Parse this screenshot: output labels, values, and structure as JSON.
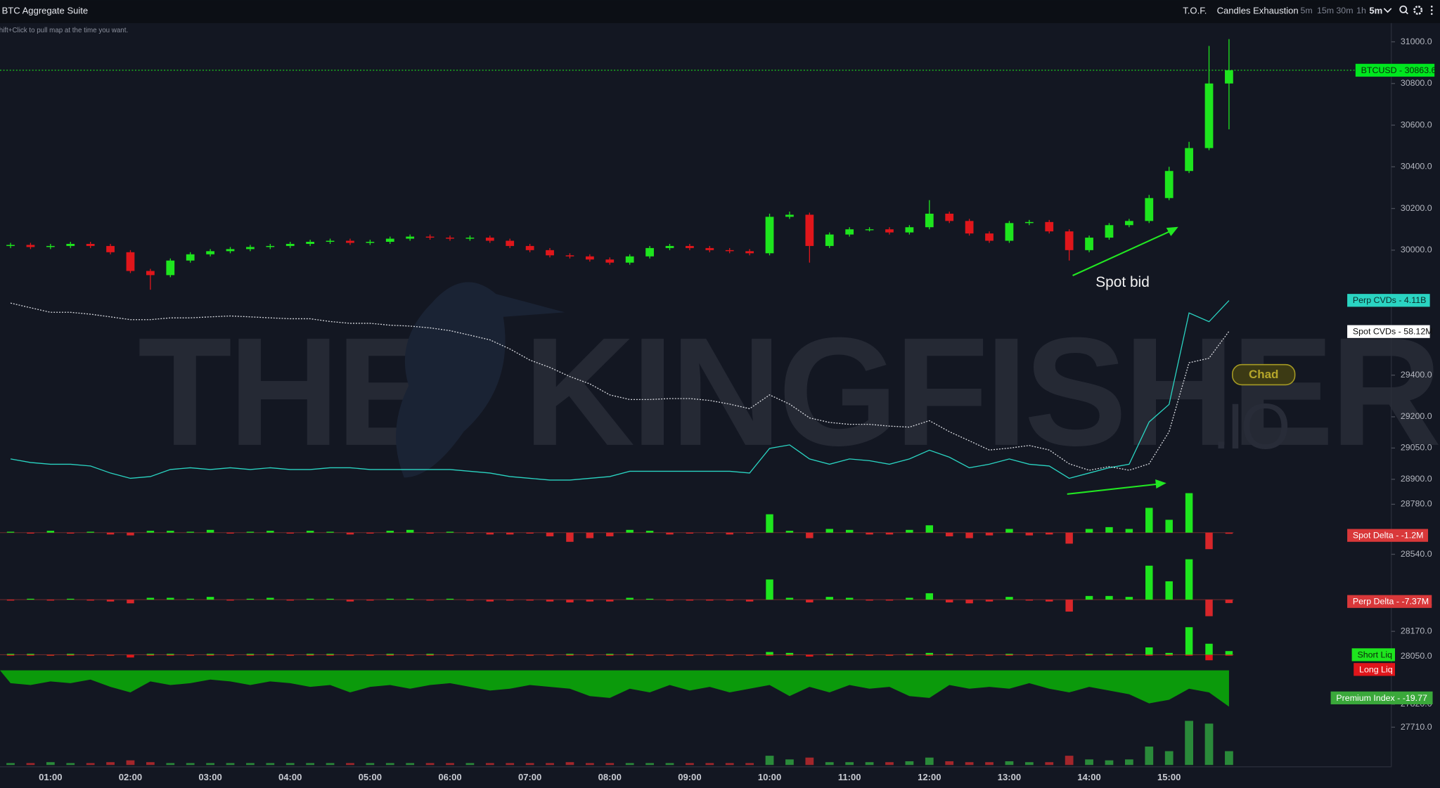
{
  "toolbar": {
    "title": "BTC Aggregate Suite",
    "items": [
      "T.O.F.",
      "Candles Exhaustion"
    ],
    "intervals": [
      "5m",
      "15m",
      "30m",
      "1h"
    ],
    "selected": "5m"
  },
  "hint": "Shift+Click to pull map at the time you want.",
  "watermark": [
    "THE",
    "KINGFISHER",
    ".IO"
  ],
  "annotation": "Spot bid",
  "button": "Chad",
  "chart_data": {
    "type": "candlestick",
    "price_label": "BTCUSD - 30863.6",
    "up_color": "#1ee51e",
    "down_color": "#e0161b",
    "categories": [
      "00:30",
      "00:45",
      "01:00",
      "01:15",
      "01:30",
      "01:45",
      "02:00",
      "02:15",
      "02:30",
      "02:45",
      "03:00",
      "03:15",
      "03:30",
      "03:45",
      "04:00",
      "04:15",
      "04:30",
      "04:45",
      "05:00",
      "05:15",
      "05:30",
      "05:45",
      "06:00",
      "06:15",
      "06:30",
      "06:45",
      "07:00",
      "07:15",
      "07:30",
      "07:45",
      "08:00",
      "08:15",
      "08:30",
      "08:45",
      "09:00",
      "09:15",
      "09:30",
      "09:45",
      "10:00",
      "10:15",
      "10:30",
      "10:45",
      "11:00",
      "11:15",
      "11:30",
      "11:45",
      "12:00",
      "12:15",
      "12:30",
      "12:45",
      "13:00",
      "13:15",
      "13:30",
      "13:45",
      "14:00",
      "14:15",
      "14:30",
      "14:45",
      "15:00",
      "15:15",
      "15:30",
      "15:45"
    ],
    "xticks": [
      "01:00",
      "02:00",
      "03:00",
      "04:00",
      "05:00",
      "06:00",
      "07:00",
      "08:00",
      "09:00",
      "10:00",
      "11:00",
      "12:00",
      "13:00",
      "14:00",
      "15:00"
    ],
    "open": [
      30020,
      30025,
      30015,
      30020,
      30030,
      30020,
      29990,
      29900,
      29880,
      29950,
      29980,
      29995,
      30005,
      30015,
      30020,
      30030,
      30040,
      30045,
      30035,
      30040,
      30055,
      30065,
      30060,
      30055,
      30060,
      30045,
      30020,
      30000,
      29975,
      29970,
      29955,
      29940,
      29970,
      30010,
      30020,
      30010,
      30000,
      29995,
      29985,
      30160,
      30170,
      30020,
      30075,
      30100,
      30100,
      30085,
      30110,
      30175,
      30140,
      30080,
      30045,
      30130,
      30135,
      30090,
      30000,
      30060,
      30120,
      30140,
      30250,
      30380,
      30490,
      30800
    ],
    "high": [
      30035,
      30035,
      30030,
      30040,
      30040,
      30030,
      30000,
      29910,
      29960,
      29990,
      30005,
      30015,
      30025,
      30030,
      30040,
      30050,
      30055,
      30055,
      30050,
      30065,
      30075,
      30075,
      30070,
      30070,
      30070,
      30055,
      30030,
      30010,
      29985,
      29980,
      29965,
      29980,
      30020,
      30030,
      30030,
      30020,
      30010,
      30005,
      30175,
      30185,
      30180,
      30085,
      30110,
      30110,
      30110,
      30120,
      30240,
      30185,
      30150,
      30090,
      30140,
      30145,
      30145,
      30100,
      30070,
      30130,
      30150,
      30265,
      30400,
      30520,
      30980,
      31013
    ],
    "low": [
      30010,
      30005,
      30005,
      30010,
      30010,
      29980,
      29890,
      29810,
      29870,
      29940,
      29970,
      29985,
      29995,
      30005,
      30010,
      30020,
      30030,
      30025,
      30025,
      30030,
      30045,
      30050,
      30045,
      30045,
      30035,
      30010,
      29990,
      29965,
      29960,
      29945,
      29930,
      29930,
      29960,
      30000,
      30000,
      29990,
      29985,
      29975,
      29975,
      30150,
      29940,
      30010,
      30065,
      30090,
      30075,
      30075,
      30100,
      30130,
      30070,
      30035,
      30035,
      30120,
      30080,
      29950,
      29990,
      30050,
      30110,
      30130,
      30240,
      30370,
      30480,
      30580
    ],
    "close": [
      30025,
      30015,
      30020,
      30030,
      30020,
      29990,
      29900,
      29880,
      29950,
      29980,
      29995,
      30005,
      30015,
      30020,
      30030,
      30040,
      30045,
      30035,
      30040,
      30055,
      30065,
      30060,
      30055,
      30060,
      30045,
      30020,
      30000,
      29975,
      29970,
      29955,
      29940,
      29970,
      30010,
      30020,
      30010,
      30000,
      29995,
      29985,
      30160,
      30170,
      30020,
      30075,
      30100,
      30100,
      30085,
      30110,
      30175,
      30140,
      30080,
      30045,
      30130,
      30135,
      30090,
      30000,
      30060,
      30120,
      30140,
      30250,
      30380,
      30490,
      30800,
      30863.6
    ],
    "ylim": [
      27520,
      31090
    ],
    "yticks": [
      {
        "value": 31000,
        "label": "31000.0"
      },
      {
        "value": 30800,
        "label": "30800.0"
      },
      {
        "value": 30600,
        "label": "30600.0"
      },
      {
        "value": 30400,
        "label": "30400.0"
      },
      {
        "value": 30200,
        "label": "30200.0"
      },
      {
        "value": 30000,
        "label": "30000.0"
      },
      {
        "value": 29400,
        "label": "29400.0"
      },
      {
        "value": 29200,
        "label": "29200.0"
      },
      {
        "value": 29050,
        "label": "29050.0"
      },
      {
        "value": 28900,
        "label": "28900.0"
      },
      {
        "value": 28780,
        "label": "28780.0"
      },
      {
        "value": 28540,
        "label": "28540.0"
      },
      {
        "value": 28295,
        "label": "28295.0"
      },
      {
        "value": 28170,
        "label": "28170.0"
      },
      {
        "value": 28050,
        "label": "28050.0"
      },
      {
        "value": 27820,
        "label": "27820.0"
      },
      {
        "value": 27710,
        "label": "27710.0"
      }
    ],
    "panes": [
      {
        "type": "line",
        "series": [
          {
            "label": "Perp CVDs - 4.11B",
            "color": "#2ad4c2",
            "ylim": [
              3.0,
              4.2
            ],
            "values": [
              3.21,
              3.19,
              3.18,
              3.18,
              3.17,
              3.13,
              3.1,
              3.11,
              3.15,
              3.16,
              3.15,
              3.16,
              3.15,
              3.16,
              3.15,
              3.15,
              3.16,
              3.16,
              3.15,
              3.15,
              3.15,
              3.15,
              3.15,
              3.14,
              3.13,
              3.11,
              3.1,
              3.09,
              3.09,
              3.1,
              3.11,
              3.14,
              3.14,
              3.14,
              3.14,
              3.14,
              3.14,
              3.13,
              3.27,
              3.29,
              3.21,
              3.18,
              3.21,
              3.2,
              3.18,
              3.21,
              3.26,
              3.22,
              3.16,
              3.18,
              3.21,
              3.18,
              3.17,
              3.1,
              3.13,
              3.16,
              3.18,
              3.42,
              3.52,
              4.04,
              3.99,
              4.11
            ]
          },
          {
            "label": "Spot CVDs - 58.12M",
            "color": "#d8dae0",
            "dashed": true,
            "ylim": [
              -90,
              100
            ],
            "values": [
              83.5,
              79.3,
              75.2,
              75.2,
              73.5,
              71.1,
              68.6,
              68.6,
              70.2,
              70.2,
              71.1,
              71.9,
              71.1,
              70.2,
              69.4,
              69.4,
              66.9,
              65.3,
              65.3,
              63.6,
              62.8,
              61.2,
              58.7,
              54.6,
              50.4,
              42.2,
              32.2,
              25.6,
              17.4,
              10.8,
              0.9,
              -3.3,
              -3.3,
              -2.4,
              -2.4,
              -4.1,
              -7.4,
              -11.5,
              0.9,
              -7.4,
              -19.8,
              -23.9,
              -25.6,
              -25.6,
              -27.2,
              -28.1,
              -22.3,
              -32.2,
              -40.4,
              -48.7,
              -47.0,
              -44.6,
              -48.7,
              -61.1,
              -66.9,
              -63.6,
              -66.9,
              -61.1,
              -32.2,
              29.8,
              33.9,
              58.12
            ]
          }
        ]
      },
      {
        "type": "bar",
        "up_color": "#1ee51e",
        "down_color": "#d8262a",
        "ylim": [
          -20,
          50
        ],
        "series": [
          {
            "label": "Spot Delta - -1.2M",
            "color": "#d9383a",
            "values": [
              1,
              -1,
              2,
              -1,
              1,
              -2,
              -3,
              2,
              2,
              1,
              3,
              -1,
              1,
              2,
              -1,
              2,
              1,
              -2,
              -1,
              2,
              3,
              -1,
              1,
              -1,
              -2,
              -2,
              -1,
              -4,
              -10,
              -6,
              -4,
              3,
              2,
              -2,
              -1,
              -1,
              -2,
              -1,
              20,
              2,
              -6,
              4,
              3,
              -2,
              -2,
              3,
              8,
              -4,
              -6,
              -3,
              4,
              -3,
              -2,
              -12,
              4,
              6,
              4,
              27,
              14,
              43,
              -18,
              -1.2
            ]
          }
        ]
      },
      {
        "type": "bar",
        "up_color": "#1ee51e",
        "down_color": "#d8262a",
        "ylim": [
          -60,
          100
        ],
        "series": [
          {
            "label": "Perp Delta - -7.37M",
            "color": "#d9383a",
            "values": [
              -2,
              2,
              -2,
              2,
              -2,
              -4,
              -8,
              4,
              4,
              2,
              6,
              -2,
              2,
              4,
              -2,
              2,
              2,
              -4,
              -2,
              2,
              2,
              -2,
              2,
              -2,
              -4,
              -2,
              -2,
              -4,
              -6,
              -4,
              -4,
              4,
              2,
              -2,
              -2,
              -2,
              -2,
              -4,
              44,
              4,
              -6,
              6,
              4,
              -2,
              -2,
              4,
              14,
              -6,
              -8,
              -4,
              6,
              -2,
              -4,
              -26,
              8,
              8,
              6,
              74,
              40,
              88,
              -36,
              -7.37
            ]
          }
        ]
      },
      {
        "type": "bar",
        "ylim": [
          -10,
          30
        ],
        "series": [
          {
            "label": "Short Liq",
            "color": "#1ee51e",
            "values": [
              1,
              1,
              0,
              1,
              0,
              0,
              0,
              1,
              1,
              0,
              1,
              0,
              1,
              1,
              0,
              1,
              1,
              0,
              0,
              1,
              0,
              1,
              0,
              0,
              0,
              0,
              0,
              0,
              1,
              0,
              1,
              1,
              0,
              0,
              0,
              0,
              0,
              0,
              3,
              2,
              0,
              1,
              1,
              0,
              0,
              1,
              2,
              1,
              0,
              0,
              1,
              0,
              0,
              0,
              1,
              1,
              1,
              8,
              2,
              30,
              12,
              4
            ]
          },
          {
            "label": "Long Liq",
            "color": "#e0161b",
            "values": [
              0,
              0,
              -1,
              0,
              0,
              -1,
              -3,
              0,
              0,
              -1,
              0,
              0,
              0,
              0,
              -1,
              0,
              0,
              0,
              -1,
              0,
              0,
              0,
              0,
              -1,
              0,
              0,
              -1,
              0,
              0,
              -1,
              0,
              0,
              0,
              0,
              0,
              -1,
              0,
              0,
              0,
              0,
              -2,
              0,
              0,
              0,
              -1,
              0,
              0,
              0,
              -1,
              0,
              0,
              0,
              0,
              -1,
              0,
              0,
              0,
              0,
              0,
              0,
              -6,
              -1
            ]
          }
        ]
      },
      {
        "type": "area",
        "ylim": [
          -25,
          0
        ],
        "series": [
          {
            "label": "Premium Index - -19.77",
            "color": "#0b9a0b",
            "values": [
              -7,
              -8,
              -6,
              -7,
              -5,
              -9,
              -12,
              -6,
              -8,
              -7,
              -5,
              -6,
              -8,
              -6,
              -7,
              -9,
              -8,
              -12,
              -9,
              -8,
              -10,
              -8,
              -7,
              -9,
              -11,
              -10,
              -8,
              -9,
              -10,
              -14,
              -15,
              -10,
              -12,
              -8,
              -11,
              -9,
              -12,
              -10,
              -8,
              -14,
              -9,
              -12,
              -8,
              -10,
              -9,
              -14,
              -15,
              -8,
              -10,
              -9,
              -10,
              -7,
              -10,
              -12,
              -9,
              -11,
              -13,
              -18,
              -16,
              -10,
              -12,
              -19.77
            ]
          }
        ]
      },
      {
        "type": "volume",
        "up_color": "#2a8a3a",
        "down_color": "#a3262b",
        "ylim": [
          0,
          50
        ],
        "series": [
          {
            "values": [
              2,
              2,
              3,
              2,
              2,
              3,
              5,
              3,
              2,
              2,
              2,
              2,
              2,
              2,
              2,
              2,
              2,
              2,
              2,
              2,
              2,
              2,
              2,
              2,
              2,
              2,
              2,
              2,
              3,
              2,
              2,
              2,
              2,
              2,
              2,
              2,
              2,
              2,
              10,
              6,
              8,
              3,
              3,
              3,
              3,
              4,
              8,
              4,
              3,
              3,
              4,
              3,
              3,
              10,
              6,
              5,
              6,
              20,
              15,
              48,
              45,
              15
            ]
          }
        ]
      }
    ]
  }
}
